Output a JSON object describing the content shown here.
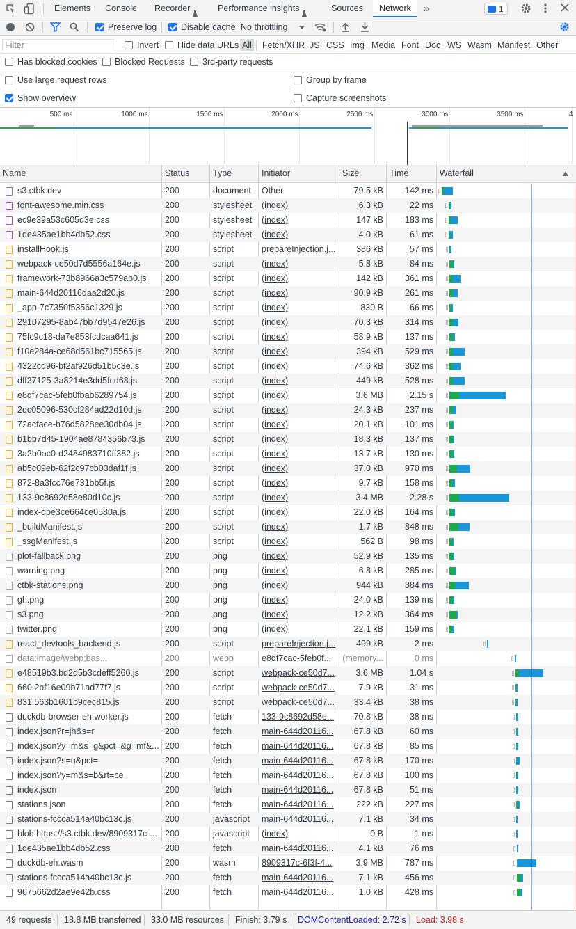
{
  "tabs": [
    {
      "label": "Elements",
      "selected": false
    },
    {
      "label": "Console",
      "selected": false
    },
    {
      "label": "Recorder",
      "selected": false
    },
    {
      "label": "Performance insights",
      "selected": false
    },
    {
      "label": "Sources",
      "selected": false
    },
    {
      "label": "Network",
      "selected": true
    }
  ],
  "issues_count": "1",
  "toolbar": {
    "preserve_log": "Preserve log",
    "disable_cache": "Disable cache",
    "throttling": "No throttling"
  },
  "filter": {
    "placeholder": "Filter",
    "invert": "Invert",
    "hide_data_urls": "Hide data URLs",
    "types": [
      "All",
      "Fetch/XHR",
      "JS",
      "CSS",
      "Img",
      "Media",
      "Font",
      "Doc",
      "WS",
      "Wasm",
      "Manifest",
      "Other"
    ],
    "has_blocked_cookies": "Has blocked cookies",
    "blocked_requests": "Blocked Requests",
    "third_party": "3rd-party requests"
  },
  "options": {
    "large_rows": "Use large request rows",
    "group_by_frame": "Group by frame",
    "show_overview": "Show overview",
    "capture_screenshots": "Capture screenshots"
  },
  "overview_ticks": [
    "500 ms",
    "1000 ms",
    "1500 ms",
    "2000 ms",
    "2500 ms",
    "3000 ms",
    "3500 ms",
    "4"
  ],
  "columns": {
    "name": "Name",
    "status": "Status",
    "type": "Type",
    "initiator": "Initiator",
    "size": "Size",
    "time": "Time",
    "waterfall": "Waterfall"
  },
  "colors": {
    "accent": "#1a73e8",
    "waiting": "#1fa84d",
    "download": "#1a97d8",
    "load": "#e53935",
    "dcl": "#1a1aa6"
  },
  "requests": [
    {
      "name": "s3.ctbk.dev",
      "status": "200",
      "type": "document",
      "initiator": "Other",
      "size": "79.5 kB",
      "time": "142 ms",
      "icon": "doc",
      "link": false,
      "wf": [
        0.2,
        0.4,
        1.7
      ]
    },
    {
      "name": "font-awesome.min.css",
      "status": "200",
      "type": "stylesheet",
      "initiator": "(index)",
      "size": "6.3 kB",
      "time": "22 ms",
      "icon": "css",
      "link": true,
      "wf": [
        1.5,
        0.3,
        0.1
      ]
    },
    {
      "name": "ec9e39a53c605d3e.css",
      "status": "200",
      "type": "stylesheet",
      "initiator": "(index)",
      "size": "147 kB",
      "time": "183 ms",
      "icon": "css",
      "link": true,
      "wf": [
        1.5,
        0.4,
        1.2
      ]
    },
    {
      "name": "1de435ae1bb4db52.css",
      "status": "200",
      "type": "stylesheet",
      "initiator": "(index)",
      "size": "4.0 kB",
      "time": "61 ms",
      "icon": "css",
      "link": true,
      "wf": [
        1.5,
        0.3,
        0.4
      ]
    },
    {
      "name": "installHook.js",
      "status": "200",
      "type": "script",
      "initiator": "prepareInjection.j...",
      "size": "386 kB",
      "time": "57 ms",
      "icon": "js",
      "link": true,
      "wf": [
        1.6,
        0.1,
        0.3
      ]
    },
    {
      "name": "webpack-ce50d7d5556a164e.js",
      "status": "200",
      "type": "script",
      "initiator": "(index)",
      "size": "5.8 kB",
      "time": "84 ms",
      "icon": "js",
      "link": true,
      "wf": [
        1.6,
        0.6,
        0.2
      ]
    },
    {
      "name": "framework-73b8966a3c579ab0.js",
      "status": "200",
      "type": "script",
      "initiator": "(index)",
      "size": "142 kB",
      "time": "361 ms",
      "icon": "js",
      "link": true,
      "wf": [
        1.6,
        0.7,
        1.3
      ]
    },
    {
      "name": "main-644d20116daa2d20.js",
      "status": "200",
      "type": "script",
      "initiator": "(index)",
      "size": "90.9 kB",
      "time": "261 ms",
      "icon": "js",
      "link": true,
      "wf": [
        1.6,
        0.7,
        0.8
      ]
    },
    {
      "name": "_app-7c7350f5356c1329.js",
      "status": "200",
      "type": "script",
      "initiator": "(index)",
      "size": "830 B",
      "time": "66 ms",
      "icon": "js",
      "link": true,
      "wf": [
        1.6,
        0.4,
        0.2
      ]
    },
    {
      "name": "29107295-8ab47bb7d9547e26.js",
      "status": "200",
      "type": "script",
      "initiator": "(index)",
      "size": "70.3 kB",
      "time": "314 ms",
      "icon": "js",
      "link": true,
      "wf": [
        1.6,
        0.7,
        1.0
      ]
    },
    {
      "name": "75fc9c18-da7e853fcdcaa641.js",
      "status": "200",
      "type": "script",
      "initiator": "(index)",
      "size": "58.9 kB",
      "time": "137 ms",
      "icon": "js",
      "link": true,
      "wf": [
        1.6,
        0.6,
        0.4
      ]
    },
    {
      "name": "f10e284a-ce68d561bc715565.js",
      "status": "200",
      "type": "script",
      "initiator": "(index)",
      "size": "394 kB",
      "time": "529 ms",
      "icon": "js",
      "link": true,
      "wf": [
        1.6,
        0.7,
        2.1
      ]
    },
    {
      "name": "4322cd96-bf2af926d51b5c3e.js",
      "status": "200",
      "type": "script",
      "initiator": "(index)",
      "size": "74.6 kB",
      "time": "362 ms",
      "icon": "js",
      "link": true,
      "wf": [
        1.6,
        0.7,
        1.3
      ]
    },
    {
      "name": "dff27125-3a8214e3dd5fcd68.js",
      "status": "200",
      "type": "script",
      "initiator": "(index)",
      "size": "449 kB",
      "time": "528 ms",
      "icon": "js",
      "link": true,
      "wf": [
        1.6,
        0.7,
        2.1
      ]
    },
    {
      "name": "e8df7cac-5feb0fbab6289754.js",
      "status": "200",
      "type": "script",
      "initiator": "(index)",
      "size": "3.6 MB",
      "time": "2.15 s",
      "icon": "js",
      "link": true,
      "wf": [
        1.6,
        1.8,
        8.4
      ]
    },
    {
      "name": "2dc05096-530cf284ad22d10d.js",
      "status": "200",
      "type": "script",
      "initiator": "(index)",
      "size": "24.3 kB",
      "time": "237 ms",
      "icon": "js",
      "link": true,
      "wf": [
        1.6,
        0.7,
        0.6
      ]
    },
    {
      "name": "72acface-b76d5828ee30db04.js",
      "status": "200",
      "type": "script",
      "initiator": "(index)",
      "size": "20.1 kB",
      "time": "101 ms",
      "icon": "js",
      "link": true,
      "wf": [
        1.6,
        0.5,
        0.2
      ]
    },
    {
      "name": "b1bb7d45-1904ae8784356b73.js",
      "status": "200",
      "type": "script",
      "initiator": "(index)",
      "size": "18.3 kB",
      "time": "137 ms",
      "icon": "js",
      "link": true,
      "wf": [
        1.6,
        0.6,
        0.3
      ]
    },
    {
      "name": "3a2b0ac0-d2484983710ff382.js",
      "status": "200",
      "type": "script",
      "initiator": "(index)",
      "size": "13.7 kB",
      "time": "130 ms",
      "icon": "js",
      "link": true,
      "wf": [
        1.6,
        0.6,
        0.3
      ]
    },
    {
      "name": "ab5c09eb-62f2c97cb03daf1f.js",
      "status": "200",
      "type": "script",
      "initiator": "(index)",
      "size": "37.0 kB",
      "time": "970 ms",
      "icon": "js",
      "link": true,
      "wf": [
        1.6,
        1.4,
        2.4
      ]
    },
    {
      "name": "872-8a3fcc76e731bb5f.js",
      "status": "200",
      "type": "script",
      "initiator": "(index)",
      "size": "9.7 kB",
      "time": "158 ms",
      "icon": "js",
      "link": true,
      "wf": [
        1.6,
        0.6,
        0.4
      ]
    },
    {
      "name": "133-9c8692d58e80d10c.js",
      "status": "200",
      "type": "script",
      "initiator": "(index)",
      "size": "3.4 MB",
      "time": "2.28 s",
      "icon": "js",
      "link": true,
      "wf": [
        1.6,
        1.8,
        9.0
      ]
    },
    {
      "name": "index-dbe3ce664ce0580a.js",
      "status": "200",
      "type": "script",
      "initiator": "(index)",
      "size": "22.0 kB",
      "time": "164 ms",
      "icon": "js",
      "link": true,
      "wf": [
        1.6,
        0.6,
        0.4
      ]
    },
    {
      "name": "_buildManifest.js",
      "status": "200",
      "type": "script",
      "initiator": "(index)",
      "size": "1.7 kB",
      "time": "848 ms",
      "icon": "js",
      "link": true,
      "wf": [
        1.6,
        1.7,
        2.0
      ]
    },
    {
      "name": "_ssgManifest.js",
      "status": "200",
      "type": "script",
      "initiator": "(index)",
      "size": "562 B",
      "time": "98 ms",
      "icon": "js",
      "link": true,
      "wf": [
        1.6,
        0.5,
        0.2
      ]
    },
    {
      "name": "plot-fallback.png",
      "status": "200",
      "type": "png",
      "initiator": "(index)",
      "size": "52.9 kB",
      "time": "135 ms",
      "icon": "img",
      "link": true,
      "wf": [
        1.6,
        0.6,
        0.3
      ]
    },
    {
      "name": "warning.png",
      "status": "200",
      "type": "png",
      "initiator": "(index)",
      "size": "6.8 kB",
      "time": "285 ms",
      "icon": "img",
      "link": true,
      "wf": [
        1.6,
        1.0,
        0.2
      ]
    },
    {
      "name": "ctbk-stations.png",
      "status": "200",
      "type": "png",
      "initiator": "(index)",
      "size": "944 kB",
      "time": "884 ms",
      "icon": "img",
      "link": true,
      "wf": [
        1.6,
        1.1,
        2.4
      ]
    },
    {
      "name": "gh.png",
      "status": "200",
      "type": "png",
      "initiator": "(index)",
      "size": "24.0 kB",
      "time": "139 ms",
      "icon": "img",
      "link": true,
      "wf": [
        1.6,
        0.6,
        0.3
      ]
    },
    {
      "name": "s3.png",
      "status": "200",
      "type": "png",
      "initiator": "(index)",
      "size": "12.2 kB",
      "time": "364 ms",
      "icon": "img",
      "link": true,
      "wf": [
        1.6,
        1.3,
        0.2
      ]
    },
    {
      "name": "twitter.png",
      "status": "200",
      "type": "png",
      "initiator": "(index)",
      "size": "22.1 kB",
      "time": "159 ms",
      "icon": "img",
      "link": true,
      "wf": [
        1.6,
        0.5,
        0.4
      ]
    },
    {
      "name": "react_devtools_backend.js",
      "status": "200",
      "type": "script",
      "initiator": "prepareInjection.j...",
      "size": "499 kB",
      "time": "2 ms",
      "icon": "js",
      "link": true,
      "wf": [
        8.4,
        0.0,
        0.2
      ]
    },
    {
      "name": "data:image/webp;bas...",
      "status": "200",
      "type": "webp",
      "initiator": "e8df7cac-5feb0f...",
      "size": "(memory...",
      "time": "0 ms",
      "icon": "img",
      "link": true,
      "muted": true,
      "wf": [
        13.4,
        0.0,
        0.2
      ]
    },
    {
      "name": "e48519b3.bd2d5b3cdeff5260.js",
      "status": "200",
      "type": "script",
      "initiator": "webpack-ce50d7...",
      "size": "3.6 MB",
      "time": "1.04 s",
      "icon": "js",
      "link": true,
      "wf": [
        13.5,
        0.6,
        4.4
      ]
    },
    {
      "name": "660.2bf16e09b71ad77f7.js",
      "status": "200",
      "type": "script",
      "initiator": "webpack-ce50d7...",
      "size": "7.9 kB",
      "time": "31 ms",
      "icon": "js",
      "link": true,
      "wf": [
        13.5,
        0.1,
        0.2
      ]
    },
    {
      "name": "831.563b1601b9cec815.js",
      "status": "200",
      "type": "script",
      "initiator": "webpack-ce50d7...",
      "size": "33.4 kB",
      "time": "38 ms",
      "icon": "js",
      "link": true,
      "wf": [
        13.5,
        0.1,
        0.2
      ]
    },
    {
      "name": "duckdb-browser-eh.worker.js",
      "status": "200",
      "type": "fetch",
      "initiator": "133-9c8692d58e...",
      "size": "70.8 kB",
      "time": "38 ms",
      "icon": "fetch",
      "link": true,
      "wf": [
        13.6,
        0.2,
        0.2
      ]
    },
    {
      "name": "index.json?r=jh&s=r",
      "status": "200",
      "type": "fetch",
      "initiator": "main-644d20116...",
      "size": "67.8 kB",
      "time": "60 ms",
      "icon": "fetch",
      "link": true,
      "wf": [
        13.6,
        0.1,
        0.2
      ]
    },
    {
      "name": "index.json?y=m&s=g&pct=&g=mf&...",
      "status": "200",
      "type": "fetch",
      "initiator": "main-644d20116...",
      "size": "67.8 kB",
      "time": "85 ms",
      "icon": "fetch",
      "link": true,
      "wf": [
        13.6,
        0.2,
        0.2
      ]
    },
    {
      "name": "index.json?s=u&pct=",
      "status": "200",
      "type": "fetch",
      "initiator": "main-644d20116...",
      "size": "67.8 kB",
      "time": "170 ms",
      "icon": "fetch",
      "link": true,
      "wf": [
        13.6,
        0.2,
        0.4
      ]
    },
    {
      "name": "index.json?y=m&s=b&rt=ce",
      "status": "200",
      "type": "fetch",
      "initiator": "main-644d20116...",
      "size": "67.8 kB",
      "time": "100 ms",
      "icon": "fetch",
      "link": true,
      "wf": [
        13.6,
        0.1,
        0.3
      ]
    },
    {
      "name": "index.json",
      "status": "200",
      "type": "fetch",
      "initiator": "main-644d20116...",
      "size": "67.8 kB",
      "time": "51 ms",
      "icon": "fetch",
      "link": true,
      "wf": [
        13.6,
        0.1,
        0.2
      ]
    },
    {
      "name": "stations.json",
      "status": "200",
      "type": "fetch",
      "initiator": "main-644d20116...",
      "size": "222 kB",
      "time": "227 ms",
      "icon": "fetch",
      "link": true,
      "wf": [
        13.6,
        0.3,
        0.4
      ]
    },
    {
      "name": "stations-fccca514a40bc13c.js",
      "status": "200",
      "type": "javascript",
      "initiator": "main-644d20116...",
      "size": "7.1 kB",
      "time": "34 ms",
      "icon": "fetch",
      "link": true,
      "wf": [
        13.6,
        0.0,
        0.2
      ]
    },
    {
      "name": "blob:https://s3.ctbk.dev/8909317c-...",
      "status": "200",
      "type": "javascript",
      "initiator": "(index)",
      "size": "0 B",
      "time": "1 ms",
      "icon": "fetch",
      "link": true,
      "wf": [
        13.6,
        0.0,
        0.1
      ]
    },
    {
      "name": "1de435ae1bb4db52.css",
      "status": "200",
      "type": "fetch",
      "initiator": "main-644d20116...",
      "size": "4.1 kB",
      "time": "76 ms",
      "icon": "fetch",
      "link": true,
      "wf": [
        13.7,
        0.1,
        0.2
      ]
    },
    {
      "name": "duckdb-eh.wasm",
      "status": "200",
      "type": "wasm",
      "initiator": "8909317c-6f3f-4...",
      "size": "3.9 MB",
      "time": "787 ms",
      "icon": "fetch",
      "link": true,
      "wasm": true,
      "wf": [
        13.7,
        0.1,
        3.4
      ]
    },
    {
      "name": "stations-fccca514a40bc13c.js",
      "status": "200",
      "type": "fetch",
      "initiator": "main-644d20116...",
      "size": "7.1 kB",
      "time": "456 ms",
      "icon": "fetch",
      "link": true,
      "wf": [
        13.7,
        0.8,
        0.4
      ]
    },
    {
      "name": "9675662d2ae9e42b.css",
      "status": "200",
      "type": "fetch",
      "initiator": "main-644d20116...",
      "size": "1.0 kB",
      "time": "428 ms",
      "icon": "fetch",
      "link": true,
      "wf": [
        13.7,
        0.7,
        0.4
      ]
    }
  ],
  "summary": {
    "requests": "49 requests",
    "transferred": "18.8 MB transferred",
    "resources": "33.0 MB resources",
    "finish": "Finish: 3.79 s",
    "dcl": "DOMContentLoaded: 2.72 s",
    "load": "Load: 3.98 s"
  }
}
